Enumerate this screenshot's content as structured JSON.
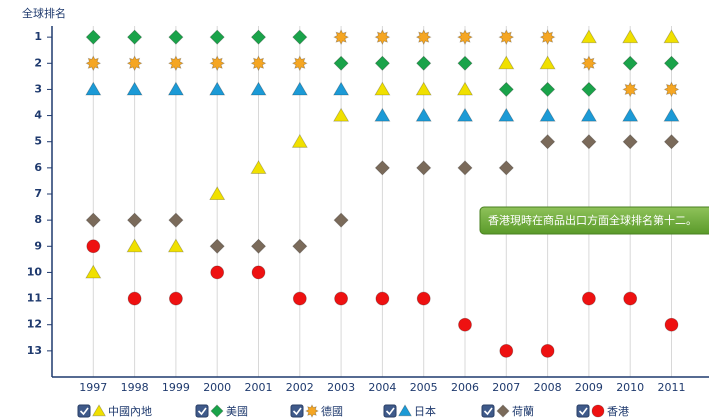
{
  "chart_data": {
    "type": "rank",
    "y_label": "全球排名",
    "categories": [
      "1997",
      "1998",
      "1999",
      "2000",
      "2001",
      "2002",
      "2003",
      "2004",
      "2005",
      "2006",
      "2007",
      "2008",
      "2009",
      "2010",
      "2011"
    ],
    "ylim": [
      0,
      14
    ],
    "y_reverse": true,
    "yticks": [
      1,
      2,
      3,
      4,
      5,
      6,
      7,
      8,
      9,
      10,
      11,
      12,
      13
    ],
    "x_grid": true,
    "series": [
      {
        "name": "中國內地",
        "color": "#f0e000",
        "marker": "triangle",
        "values": [
          10,
          9,
          9,
          7,
          6,
          5,
          4,
          3,
          3,
          3,
          2,
          2,
          1,
          1,
          1
        ]
      },
      {
        "name": "美國",
        "color": "#1aa34a",
        "marker": "diamond",
        "values": [
          1,
          1,
          1,
          1,
          1,
          1,
          2,
          2,
          2,
          2,
          3,
          3,
          3,
          2,
          2
        ]
      },
      {
        "name": "德國",
        "color": "#f5a623",
        "marker": "star",
        "values": [
          2,
          2,
          2,
          2,
          2,
          2,
          1,
          1,
          1,
          1,
          1,
          1,
          2,
          3,
          3
        ]
      },
      {
        "name": "日本",
        "color": "#1c9ad6",
        "marker": "triangle",
        "values": [
          3,
          3,
          3,
          3,
          3,
          3,
          3,
          4,
          4,
          4,
          4,
          4,
          4,
          4,
          4
        ]
      },
      {
        "name": "荷蘭",
        "color": "#7a6a5a",
        "marker": "diamond",
        "values": [
          8,
          8,
          8,
          9,
          9,
          9,
          8,
          6,
          6,
          6,
          6,
          5,
          5,
          5,
          5
        ]
      },
      {
        "name": "香港",
        "color": "#ee1111",
        "marker": "circle",
        "values": [
          9,
          11,
          11,
          10,
          10,
          11,
          11,
          11,
          11,
          12,
          13,
          13,
          11,
          11,
          12
        ]
      }
    ],
    "annotation": "香港現時在商品出口方面全球排名第十二。"
  }
}
